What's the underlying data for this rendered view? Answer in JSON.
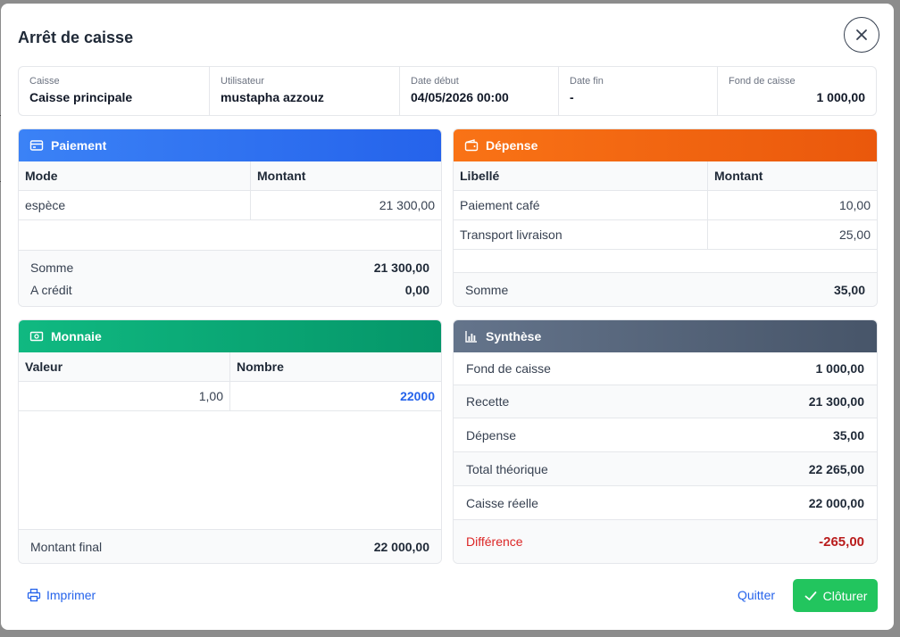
{
  "modal": {
    "title": "Arrêt de caisse",
    "close_icon": "close-icon"
  },
  "info": [
    {
      "label": "Caisse",
      "value": "Caisse principale"
    },
    {
      "label": "Utilisateur",
      "value": "mustapha azzouz"
    },
    {
      "label": "Date début",
      "value": "04/05/2026 00:00"
    },
    {
      "label": "Date fin",
      "value": "-"
    },
    {
      "label": "Fond de caisse",
      "value": "1 000,00"
    }
  ],
  "paiement": {
    "title": "Paiement",
    "icon": "credit-card-icon",
    "headers": [
      "Mode",
      "Montant"
    ],
    "rows": [
      {
        "mode": "espèce",
        "montant": "21 300,00"
      }
    ],
    "totals": [
      {
        "label": "Somme",
        "value": "21 300,00"
      },
      {
        "label": "A crédit",
        "value": "0,00"
      }
    ]
  },
  "depense": {
    "title": "Dépense",
    "icon": "wallet-icon",
    "headers": [
      "Libellé",
      "Montant"
    ],
    "rows": [
      {
        "libelle": "Paiement café",
        "montant": "10,00"
      },
      {
        "libelle": "Transport livraison",
        "montant": "25,00"
      }
    ],
    "totals": [
      {
        "label": "Somme",
        "value": "35,00"
      }
    ]
  },
  "monnaie": {
    "title": "Monnaie",
    "icon": "banknote-icon",
    "headers": [
      "Valeur",
      "Nombre"
    ],
    "rows": [
      {
        "valeur": "1,00",
        "nombre": "22000"
      }
    ],
    "totals": [
      {
        "label": "Montant final",
        "value": "22 000,00"
      }
    ]
  },
  "synthese": {
    "title": "Synthèse",
    "icon": "bar-chart-icon",
    "rows": [
      {
        "label": "Fond de caisse",
        "value": "1 000,00"
      },
      {
        "label": "Recette",
        "value": "21 300,00"
      },
      {
        "label": "Dépense",
        "value": "35,00"
      },
      {
        "label": "Total théorique",
        "value": "22 265,00"
      },
      {
        "label": "Caisse réelle",
        "value": "22 000,00"
      },
      {
        "label": "Différence",
        "value": "-265,00"
      }
    ]
  },
  "actions": {
    "print_label": "Imprimer",
    "print_icon": "printer-icon",
    "quit_label": "Quitter",
    "close_label": "Clôturer",
    "close_icon": "check-icon"
  },
  "colors": {
    "paiement_header": "#2563eb",
    "depense_header": "#ea580c",
    "monnaie_header": "#059669",
    "synthese_header": "#475569",
    "difference": "#b91c1c",
    "primary_action": "#22c55e",
    "link": "#2563eb"
  }
}
